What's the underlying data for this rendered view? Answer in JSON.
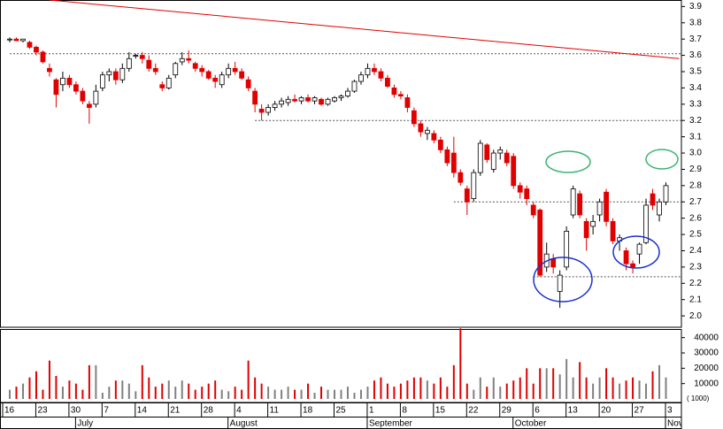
{
  "chart_data": {
    "type": "candlestick",
    "categories": [
      "16",
      null,
      null,
      null,
      null,
      "23",
      null,
      null,
      null,
      null,
      "30",
      null,
      null,
      null,
      null,
      "7",
      null,
      null,
      null,
      null,
      "14",
      null,
      null,
      null,
      null,
      "21",
      null,
      null,
      null,
      null,
      "28",
      null,
      null,
      null,
      null,
      "4",
      null,
      null,
      null,
      null,
      "11",
      null,
      null,
      null,
      null,
      "18",
      null,
      null,
      null,
      null,
      "25",
      null,
      null,
      null,
      null,
      "1",
      null,
      null,
      null,
      null,
      "8",
      null,
      null,
      null,
      null,
      "15",
      null,
      null,
      null,
      null,
      "22",
      null,
      null,
      null,
      null,
      "29",
      null,
      null,
      null,
      null,
      "6",
      null,
      null,
      null,
      null,
      "13",
      null,
      null,
      null,
      null,
      "20",
      null,
      null,
      null,
      null,
      "27",
      null,
      null,
      null,
      null,
      "3"
    ],
    "open": [
      3.7,
      3.7,
      3.69,
      3.68,
      3.65,
      3.62,
      3.52,
      3.45,
      3.42,
      3.46,
      3.42,
      3.38,
      3.3,
      3.3,
      3.4,
      3.48,
      3.5,
      3.45,
      3.52,
      3.6,
      3.6,
      3.57,
      3.52,
      3.42,
      3.4,
      3.48,
      3.56,
      3.58,
      3.55,
      3.52,
      3.5,
      3.46,
      3.42,
      3.48,
      3.52,
      3.5,
      3.45,
      3.38,
      3.27,
      3.25,
      3.28,
      3.3,
      3.31,
      3.33,
      3.32,
      3.34,
      3.32,
      3.33,
      3.3,
      3.32,
      3.34,
      3.35,
      3.38,
      3.44,
      3.48,
      3.52,
      3.5,
      3.46,
      3.4,
      3.36,
      3.34,
      3.26,
      3.18,
      3.12,
      3.12,
      3.08,
      3.02,
      3.0,
      2.88,
      2.78,
      2.72,
      2.88,
      3.05,
      2.9,
      3.0,
      3.0,
      2.98,
      2.8,
      2.78,
      2.68,
      2.65,
      2.3,
      2.35,
      2.15,
      2.3,
      2.62,
      2.75,
      2.58,
      2.55,
      2.62,
      2.76,
      2.58,
      2.46,
      2.4,
      2.32,
      2.38,
      2.45,
      2.75,
      2.62,
      2.7,
      null
    ],
    "high": [
      3.71,
      3.71,
      3.7,
      3.69,
      3.66,
      3.63,
      3.55,
      3.46,
      3.5,
      3.48,
      3.44,
      3.4,
      3.32,
      3.42,
      3.5,
      3.52,
      3.52,
      3.55,
      3.62,
      3.61,
      3.62,
      3.6,
      3.55,
      3.44,
      3.48,
      3.56,
      3.62,
      3.63,
      3.56,
      3.54,
      3.51,
      3.48,
      3.5,
      3.55,
      3.56,
      3.52,
      3.47,
      3.4,
      3.3,
      3.3,
      3.32,
      3.34,
      3.35,
      3.36,
      3.35,
      3.36,
      3.35,
      3.34,
      3.34,
      3.35,
      3.36,
      3.4,
      3.45,
      3.5,
      3.55,
      3.55,
      3.52,
      3.48,
      3.42,
      3.38,
      3.36,
      3.28,
      3.2,
      3.16,
      3.14,
      3.1,
      3.04,
      3.1,
      2.9,
      2.8,
      2.9,
      3.08,
      3.06,
      3.02,
      3.04,
      3.02,
      3.0,
      2.82,
      2.8,
      2.7,
      2.66,
      2.45,
      2.38,
      2.28,
      2.55,
      2.8,
      2.77,
      2.6,
      2.62,
      2.72,
      2.78,
      2.6,
      2.5,
      2.42,
      2.34,
      2.45,
      2.72,
      2.78,
      2.72,
      2.82,
      null
    ],
    "low": [
      3.68,
      3.69,
      3.68,
      3.64,
      3.6,
      3.55,
      3.47,
      3.28,
      3.38,
      3.4,
      3.36,
      3.3,
      3.18,
      3.28,
      3.38,
      3.44,
      3.42,
      3.43,
      3.5,
      3.58,
      3.55,
      3.5,
      3.48,
      3.38,
      3.39,
      3.46,
      3.54,
      3.55,
      3.5,
      3.47,
      3.45,
      3.4,
      3.4,
      3.46,
      3.48,
      3.45,
      3.38,
      3.25,
      3.2,
      3.23,
      3.26,
      3.28,
      3.29,
      3.31,
      3.3,
      3.31,
      3.3,
      3.29,
      3.29,
      3.31,
      3.32,
      3.34,
      3.37,
      3.42,
      3.46,
      3.48,
      3.44,
      3.4,
      3.34,
      3.33,
      3.25,
      3.16,
      3.1,
      3.08,
      3.06,
      3.0,
      2.92,
      2.85,
      2.8,
      2.62,
      2.7,
      2.86,
      2.94,
      2.88,
      2.96,
      2.92,
      2.78,
      2.72,
      2.68,
      2.6,
      2.24,
      2.27,
      2.26,
      2.05,
      2.28,
      2.6,
      2.6,
      2.4,
      2.5,
      2.58,
      2.55,
      2.44,
      2.4,
      2.28,
      2.26,
      2.32,
      2.44,
      2.65,
      2.58,
      2.68,
      null
    ],
    "close": [
      3.7,
      3.69,
      3.7,
      3.65,
      3.62,
      3.56,
      3.5,
      3.36,
      3.46,
      3.42,
      3.38,
      3.32,
      3.28,
      3.38,
      3.48,
      3.5,
      3.45,
      3.52,
      3.58,
      3.6,
      3.58,
      3.52,
      3.5,
      3.4,
      3.46,
      3.55,
      3.58,
      3.57,
      3.52,
      3.5,
      3.46,
      3.44,
      3.48,
      3.52,
      3.5,
      3.46,
      3.4,
      3.3,
      3.25,
      3.28,
      3.3,
      3.32,
      3.33,
      3.32,
      3.34,
      3.32,
      3.34,
      3.3,
      3.33,
      3.34,
      3.35,
      3.38,
      3.44,
      3.48,
      3.52,
      3.5,
      3.46,
      3.41,
      3.36,
      3.35,
      3.28,
      3.18,
      3.13,
      3.14,
      3.08,
      3.02,
      2.94,
      2.88,
      2.82,
      2.7,
      2.88,
      3.06,
      2.96,
      3.0,
      3.02,
      2.94,
      2.8,
      2.76,
      2.72,
      2.62,
      2.25,
      2.38,
      2.3,
      2.25,
      2.52,
      2.78,
      2.62,
      2.48,
      2.58,
      2.7,
      2.58,
      2.46,
      2.48,
      2.32,
      2.3,
      2.44,
      2.68,
      2.68,
      2.7,
      2.8,
      null
    ],
    "up_color": "#000000",
    "down_color": "#e00000",
    "ylim": [
      1.93,
      3.94
    ],
    "yticks": [
      {
        "value": 2,
        "label": "2.0"
      },
      2.1,
      2.2,
      2.3,
      2.4,
      2.5,
      2.6,
      2.7,
      2.8,
      2.9,
      {
        "value": 3,
        "label": "3.0"
      },
      3.1,
      3.2,
      3.3,
      3.4,
      3.5,
      3.6,
      3.7,
      3.8,
      3.9
    ],
    "levels": [
      {
        "value": 3.61,
        "from": 0
      },
      {
        "value": 3.2,
        "from": 37
      },
      {
        "value": 2.7,
        "from": 67
      },
      {
        "value": 2.24,
        "from": 79
      }
    ],
    "trendline": {
      "x": [
        6,
        101
      ],
      "y": [
        3.94,
        3.58
      ],
      "color": "#e00000"
    },
    "months": [
      {
        "label": "July",
        "start": 11
      },
      {
        "label": "August",
        "start": 34
      },
      {
        "label": "September",
        "start": 55
      },
      {
        "label": "October",
        "start": 77
      },
      {
        "label": "Nov",
        "start": 100
      }
    ],
    "volume": {
      "type": "bar",
      "values": [
        6000,
        8000,
        10000,
        14000,
        18000,
        6000,
        25000,
        15000,
        8000,
        12000,
        10000,
        6000,
        22000,
        22000,
        4000,
        8000,
        12000,
        12000,
        10000,
        5000,
        22000,
        14000,
        8000,
        10000,
        12000,
        8000,
        12000,
        10000,
        6000,
        8000,
        10000,
        12000,
        6000,
        5000,
        8000,
        6000,
        25000,
        14000,
        10000,
        8000,
        6000,
        6000,
        8000,
        6000,
        6000,
        10000,
        4000,
        8000,
        6000,
        6000,
        6000,
        8000,
        4000,
        6000,
        8000,
        12000,
        14000,
        10000,
        8000,
        10000,
        12000,
        14000,
        14000,
        12000,
        10000,
        14000,
        8000,
        22000,
        46000,
        10000,
        6000,
        14000,
        8000,
        14000,
        8000,
        10000,
        12000,
        14000,
        20000,
        10000,
        20000,
        20000,
        20000,
        16000,
        26000,
        14000,
        24000,
        14000,
        10000,
        14000,
        20000,
        14000,
        10000,
        12000,
        14000,
        12000,
        10000,
        18000,
        22000,
        14000,
        null
      ],
      "ylim": [
        0,
        45000
      ],
      "yticks": [
        10000,
        20000,
        30000,
        40000
      ],
      "unit_label": "( 1000)",
      "up_color": "#808080",
      "down_color": "#e00000"
    }
  }
}
